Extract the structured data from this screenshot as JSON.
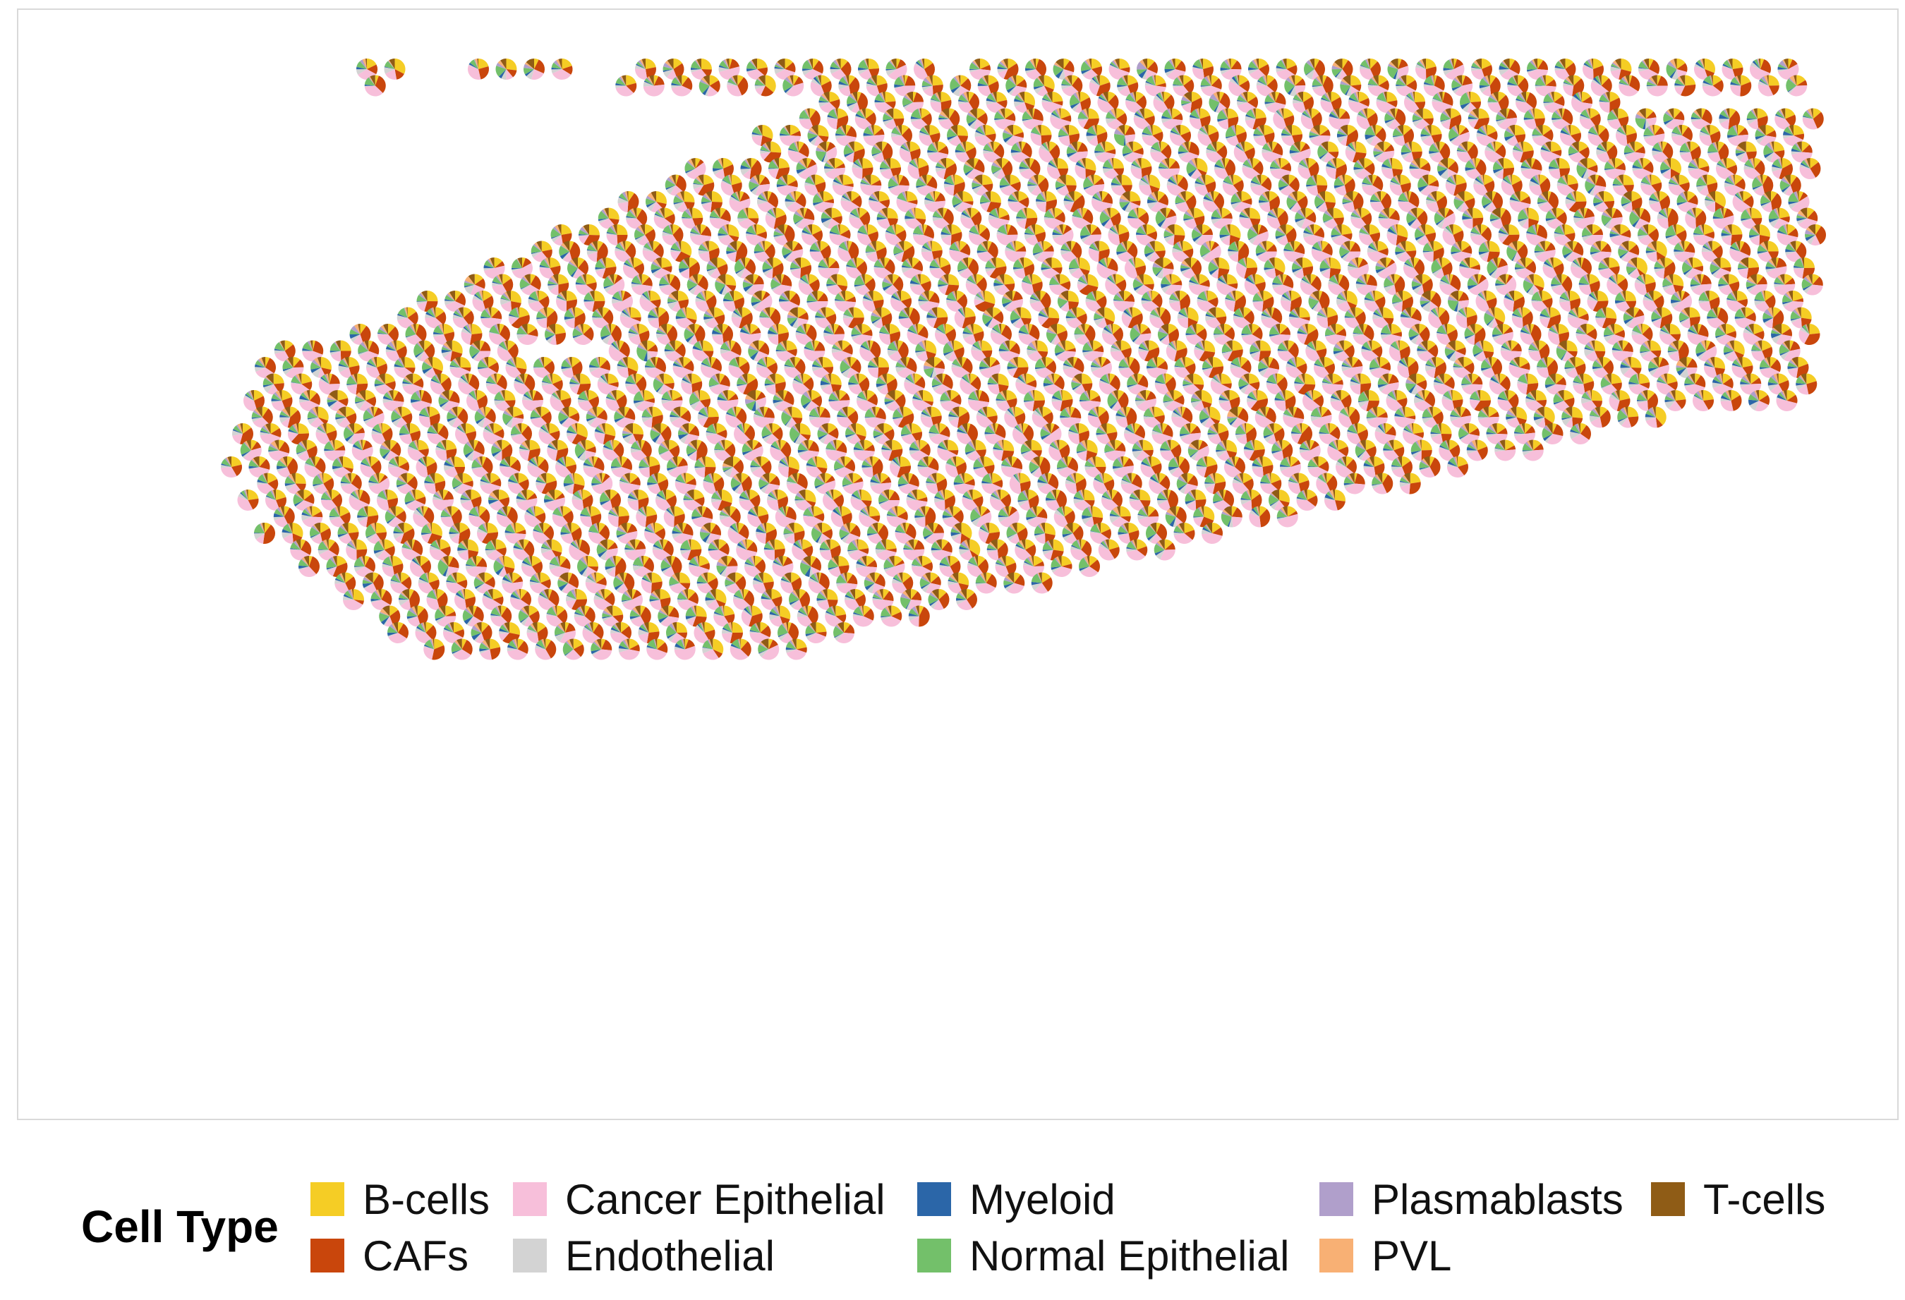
{
  "chart_data": {
    "type": "scatter",
    "subtype": "spatial-scatterpie",
    "title": "",
    "xlabel": "",
    "ylabel": "",
    "grid": false,
    "legend": {
      "title": "Cell Type",
      "placement": "bottom",
      "entries": [
        {
          "name": "B-cells",
          "color": "#F5CD25"
        },
        {
          "name": "CAFs",
          "color": "#C9460C"
        },
        {
          "name": "Cancer Epithelial",
          "color": "#F7BFDA"
        },
        {
          "name": "Endothelial",
          "color": "#D3D3D3"
        },
        {
          "name": "Myeloid",
          "color": "#2B66A8"
        },
        {
          "name": "Normal Epithelial",
          "color": "#73C06A"
        },
        {
          "name": "Plasmablasts",
          "color": "#B09FCB"
        },
        {
          "name": "PVL",
          "color": "#F8B074"
        },
        {
          "name": "T-cells",
          "color": "#8F5C16"
        }
      ]
    },
    "spots": [
      {
        "row": 0,
        "cols": [
          [
            0,
            1
          ],
          [
            4,
            7
          ],
          [
            10,
            20
          ],
          [
            22,
            51
          ]
        ]
      },
      {
        "row": 1,
        "cols": [
          [
            0,
            0
          ],
          [
            9,
            51
          ]
        ]
      },
      {
        "row": 2,
        "cols": [
          [
            17,
            45
          ]
        ]
      },
      {
        "row": 3,
        "cols": [
          [
            16,
            53
          ]
        ]
      },
      {
        "row": 4,
        "cols": [
          [
            15,
            55
          ]
        ]
      },
      {
        "row": 5,
        "cols": [
          [
            15,
            58
          ]
        ]
      },
      {
        "row": 6,
        "cols": [
          [
            13,
            59
          ]
        ]
      },
      {
        "row": 7,
        "cols": [
          [
            12,
            60
          ]
        ]
      },
      {
        "row": 8,
        "cols": [
          [
            11,
            60
          ]
        ]
      },
      {
        "row": 9,
        "cols": [
          [
            10,
            60
          ]
        ]
      },
      {
        "row": 10,
        "cols": [
          [
            9,
            60
          ]
        ]
      },
      {
        "row": 11,
        "cols": [
          [
            8,
            60
          ]
        ]
      },
      {
        "row": 12,
        "cols": [
          [
            7,
            60
          ]
        ]
      },
      {
        "row": 13,
        "cols": [
          [
            6,
            60
          ]
        ]
      },
      {
        "row": 14,
        "cols": [
          [
            5,
            60
          ]
        ]
      },
      {
        "row": 15,
        "cols": [
          [
            4,
            60
          ]
        ]
      },
      {
        "row": 16,
        "cols": [
          [
            3,
            60
          ]
        ]
      },
      {
        "row": 17,
        "cols": [
          [
            0,
            8
          ],
          [
            12,
            60
          ]
        ]
      },
      {
        "row": 18,
        "cols": [
          [
            0,
            58
          ]
        ]
      },
      {
        "row": 19,
        "cols": [
          [
            0,
            56
          ]
        ]
      },
      {
        "row": 20,
        "cols": [
          [
            0,
            55
          ]
        ]
      },
      {
        "row": 21,
        "cols": [
          [
            0,
            50
          ]
        ]
      },
      {
        "row": 22,
        "cols": [
          [
            0,
            48
          ]
        ]
      },
      {
        "row": 23,
        "cols": [
          [
            0,
            46
          ]
        ]
      },
      {
        "row": 24,
        "cols": [
          [
            0,
            44
          ]
        ]
      },
      {
        "row": 25,
        "cols": [
          [
            1,
            42
          ]
        ]
      },
      {
        "row": 26,
        "cols": [
          [
            1,
            40
          ]
        ]
      },
      {
        "row": 27,
        "cols": [
          [
            2,
            38
          ]
        ]
      },
      {
        "row": 28,
        "cols": [
          [
            2,
            36
          ]
        ]
      },
      {
        "row": 29,
        "cols": [
          [
            3,
            34
          ]
        ]
      },
      {
        "row": 30,
        "cols": [
          [
            4,
            32
          ]
        ]
      },
      {
        "row": 31,
        "cols": [
          [
            5,
            30
          ]
        ]
      },
      {
        "row": 32,
        "cols": [
          [
            6,
            28
          ]
        ]
      },
      {
        "row": 33,
        "cols": [
          [
            7,
            26
          ]
        ]
      },
      {
        "row": 34,
        "cols": [
          [
            8,
            24
          ]
        ]
      },
      {
        "row": 35,
        "cols": [
          [
            9,
            22
          ]
        ]
      }
    ]
  }
}
